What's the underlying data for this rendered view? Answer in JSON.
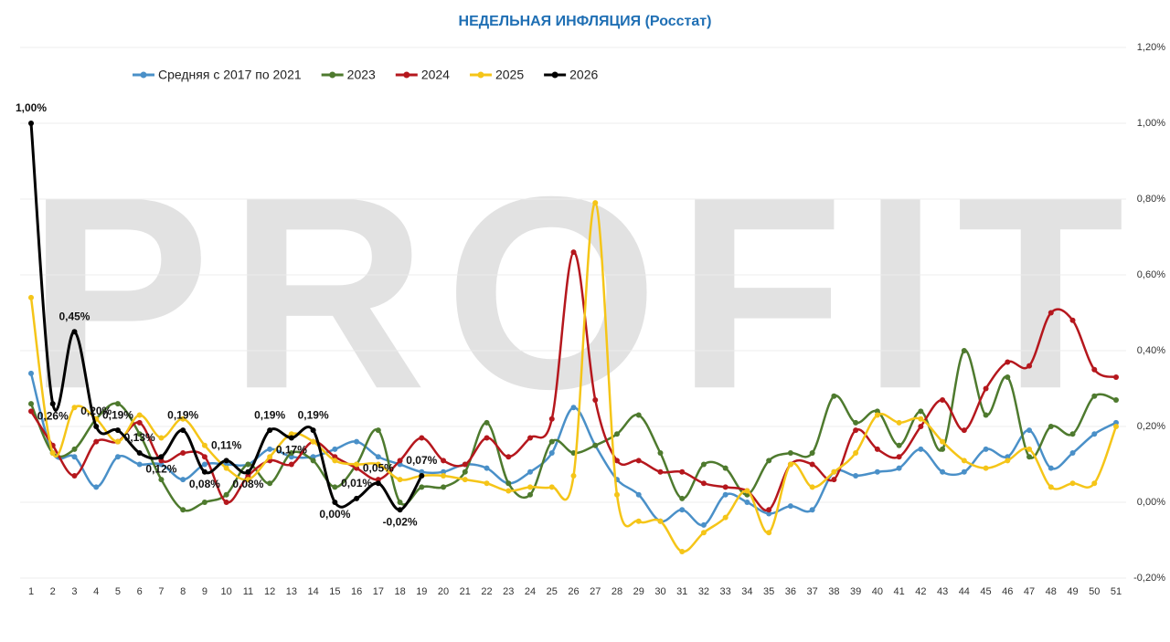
{
  "chart_data": {
    "type": "line",
    "title": "НЕДЕЛЬНАЯ ИНФЛЯЦИЯ (Росстат)",
    "watermark": "PROFIT",
    "categories": [
      "1",
      "2",
      "3",
      "4",
      "5",
      "6",
      "7",
      "8",
      "9",
      "10",
      "11",
      "12",
      "13",
      "14",
      "15",
      "16",
      "17",
      "18",
      "19",
      "20",
      "21",
      "22",
      "23",
      "24",
      "25",
      "26",
      "27",
      "28",
      "29",
      "30",
      "31",
      "32",
      "33",
      "34",
      "35",
      "36",
      "37",
      "38",
      "39",
      "40",
      "41",
      "42",
      "43",
      "44",
      "45",
      "46",
      "47",
      "48",
      "49",
      "50",
      "51"
    ],
    "ylim": [
      -0.2,
      1.2
    ],
    "yticks": [
      {
        "value": -0.2,
        "label": "-0,20%"
      },
      {
        "value": 0,
        "label": "0,00%"
      },
      {
        "value": 0.2,
        "label": "0,20%"
      },
      {
        "value": 0.4,
        "label": "0,40%"
      },
      {
        "value": 0.6,
        "label": "0,60%"
      },
      {
        "value": 0.8,
        "label": "0,80%"
      },
      {
        "value": 1.0,
        "label": "1,00%"
      },
      {
        "value": 1.2,
        "label": "1,20%"
      }
    ],
    "grid": true,
    "legend": "top",
    "series": [
      {
        "name": "Средняя с 2017 по 2021",
        "color": "#4a90c8",
        "values": [
          0.34,
          0.13,
          0.12,
          0.04,
          0.12,
          0.1,
          0.1,
          0.06,
          0.1,
          0.1,
          0.1,
          0.14,
          0.12,
          0.12,
          0.14,
          0.16,
          0.12,
          0.1,
          0.08,
          0.08,
          0.1,
          0.09,
          0.05,
          0.08,
          0.13,
          0.25,
          0.15,
          0.06,
          0.02,
          -0.05,
          -0.02,
          -0.06,
          0.02,
          0.0,
          -0.03,
          -0.01,
          -0.02,
          0.08,
          0.07,
          0.08,
          0.09,
          0.14,
          0.08,
          0.08,
          0.14,
          0.12,
          0.19,
          0.09,
          0.13,
          0.18,
          0.21
        ]
      },
      {
        "name": "2023",
        "color": "#4e7a2e",
        "values": [
          0.26,
          0.13,
          0.14,
          0.22,
          0.26,
          0.18,
          0.06,
          -0.02,
          0.0,
          0.02,
          0.1,
          0.05,
          0.13,
          0.11,
          0.04,
          0.1,
          0.19,
          0.0,
          0.04,
          0.04,
          0.08,
          0.21,
          0.05,
          0.02,
          0.16,
          0.13,
          0.15,
          0.18,
          0.23,
          0.13,
          0.01,
          0.1,
          0.09,
          0.02,
          0.11,
          0.13,
          0.13,
          0.28,
          0.21,
          0.24,
          0.15,
          0.24,
          0.14,
          0.4,
          0.23,
          0.33,
          0.12,
          0.2,
          0.18,
          0.28,
          0.27
        ]
      },
      {
        "name": "2024",
        "color": "#b5171d",
        "values": [
          0.24,
          0.15,
          0.07,
          0.16,
          0.16,
          0.21,
          0.11,
          0.13,
          0.12,
          0.0,
          0.07,
          0.11,
          0.1,
          0.16,
          0.12,
          0.09,
          0.06,
          0.11,
          0.17,
          0.11,
          0.1,
          0.17,
          0.12,
          0.17,
          0.22,
          0.66,
          0.27,
          0.11,
          0.11,
          0.08,
          0.08,
          0.05,
          0.04,
          0.03,
          -0.02,
          0.1,
          0.1,
          0.06,
          0.19,
          0.14,
          0.12,
          0.2,
          0.27,
          0.19,
          0.3,
          0.37,
          0.36,
          0.5,
          0.48,
          0.35,
          0.33
        ]
      },
      {
        "name": "2025",
        "color": "#f5c518",
        "values": [
          0.54,
          0.13,
          0.25,
          0.22,
          0.16,
          0.23,
          0.17,
          0.22,
          0.15,
          0.09,
          0.06,
          0.12,
          0.18,
          0.16,
          0.11,
          0.1,
          0.1,
          0.06,
          0.07,
          0.07,
          0.06,
          0.05,
          0.03,
          0.04,
          0.04,
          0.07,
          0.79,
          0.02,
          -0.05,
          -0.05,
          -0.13,
          -0.08,
          -0.04,
          0.03,
          -0.08,
          0.1,
          0.04,
          0.08,
          0.13,
          0.23,
          0.21,
          0.22,
          0.16,
          0.11,
          0.09,
          0.11,
          0.14,
          0.04,
          0.05,
          0.05,
          0.2
        ]
      },
      {
        "name": "2026",
        "color": "#000000",
        "values": [
          1.0,
          0.26,
          0.45,
          0.2,
          0.19,
          0.13,
          0.12,
          0.19,
          0.08,
          0.11,
          0.08,
          0.19,
          0.17,
          0.19,
          0.0,
          0.01,
          0.05,
          -0.02,
          0.07,
          null,
          null,
          null,
          null,
          null,
          null,
          null,
          null,
          null,
          null,
          null,
          null,
          null,
          null,
          null,
          null,
          null,
          null,
          null,
          null,
          null,
          null,
          null,
          null,
          null,
          null,
          null,
          null,
          null,
          null,
          null,
          null
        ],
        "value_labels": [
          "1,00%",
          "0,26%",
          "0,45%",
          "0,20%",
          "0,19%",
          "0,13%",
          "0,12%",
          "0,19%",
          "0,08%",
          "0,11%",
          "0,08%",
          "0,19%",
          "0,17%",
          "0,19%",
          "0,00%",
          "0,01%",
          "0,05%",
          "-0,02%",
          "0,07%",
          null,
          null,
          null,
          null,
          null,
          null,
          null,
          null,
          null,
          null,
          null,
          null,
          null,
          null,
          null,
          null,
          null,
          null,
          null,
          null,
          null,
          null,
          null,
          null,
          null,
          null,
          null,
          null,
          null,
          null,
          null,
          null
        ]
      }
    ]
  }
}
